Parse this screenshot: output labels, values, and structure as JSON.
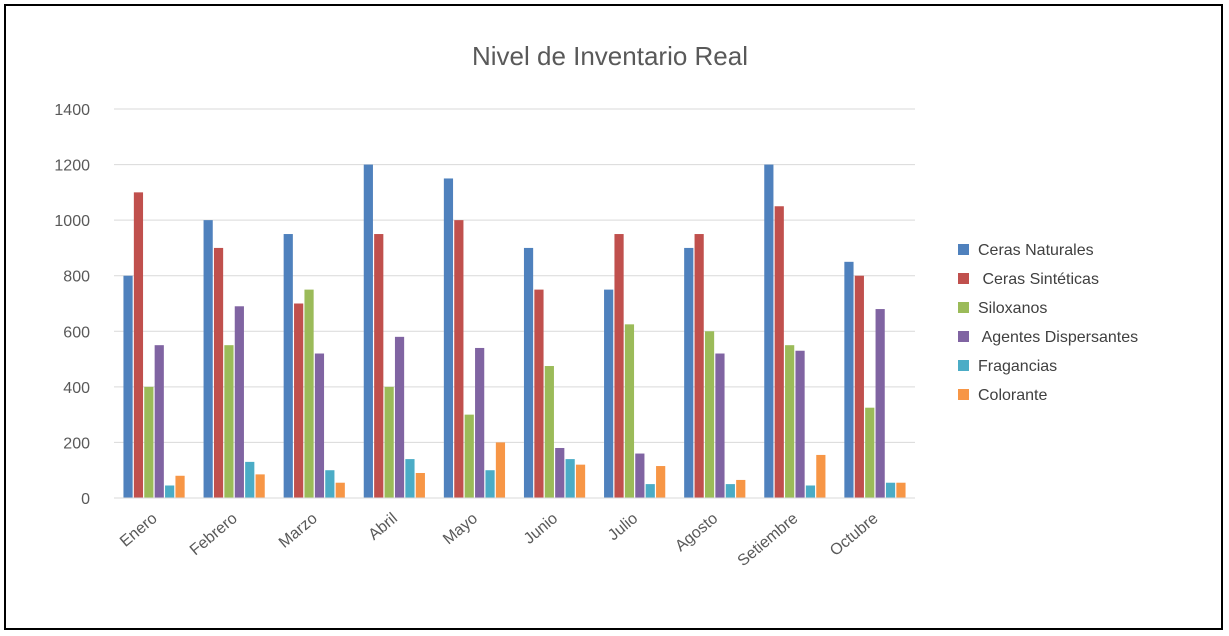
{
  "chart_data": {
    "type": "bar",
    "title": "Nivel de Inventario Real",
    "xlabel": "",
    "ylabel": "",
    "ylim": [
      0,
      1400
    ],
    "yticks": [
      0,
      200,
      400,
      600,
      800,
      1000,
      1200,
      1400
    ],
    "grid": true,
    "legend_position": "right",
    "categories": [
      "Enero",
      "Febrero",
      "Marzo",
      "Abril",
      "Mayo",
      "Junio",
      "Julio",
      "Agosto",
      "Setiembre",
      "Octubre"
    ],
    "series": [
      {
        "name": "Ceras Naturales",
        "color": "#4f81bd",
        "values": [
          800,
          1000,
          950,
          1200,
          1150,
          900,
          750,
          900,
          1200,
          850
        ]
      },
      {
        "name": " Ceras Sintéticas",
        "color": "#c0504d",
        "values": [
          1100,
          900,
          700,
          950,
          1000,
          750,
          950,
          950,
          1050,
          800
        ]
      },
      {
        "name": "Siloxanos",
        "color": "#9bbb59",
        "values": [
          400,
          550,
          750,
          400,
          300,
          475,
          625,
          600,
          550,
          325
        ]
      },
      {
        "name": " Agentes Dispersantes",
        "color": "#8064a2",
        "values": [
          550,
          690,
          520,
          580,
          540,
          180,
          160,
          520,
          530,
          680
        ]
      },
      {
        "name": "Fragancias",
        "color": "#4bacc6",
        "values": [
          45,
          130,
          100,
          140,
          100,
          140,
          50,
          50,
          45,
          55
        ]
      },
      {
        "name": "Colorante",
        "color": "#f79646",
        "values": [
          80,
          85,
          55,
          90,
          200,
          120,
          115,
          65,
          155,
          55
        ]
      }
    ]
  }
}
